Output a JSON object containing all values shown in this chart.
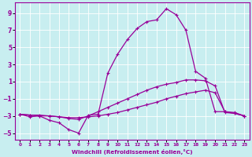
{
  "xlabel": "Windchill (Refroidissement éolien,°C)",
  "xlim": [
    -0.5,
    23.5
  ],
  "ylim": [
    -5.8,
    10.2
  ],
  "yticks": [
    -5,
    -3,
    -1,
    1,
    3,
    5,
    7,
    9
  ],
  "xticks": [
    0,
    1,
    2,
    3,
    4,
    5,
    6,
    7,
    8,
    9,
    10,
    11,
    12,
    13,
    14,
    15,
    16,
    17,
    18,
    19,
    20,
    21,
    22,
    23
  ],
  "bg_color": "#c8eef0",
  "line_color": "#990099",
  "line1_x": [
    0,
    1,
    2,
    3,
    4,
    5,
    6,
    7,
    8,
    9,
    10,
    11,
    12,
    13,
    14,
    15,
    16,
    17,
    18,
    19,
    20,
    21,
    22,
    23
  ],
  "line1_y": [
    -2.8,
    -3.1,
    -3.0,
    -3.5,
    -3.8,
    -4.6,
    -5.0,
    -2.9,
    -2.8,
    2.0,
    4.2,
    5.9,
    7.2,
    8.0,
    8.2,
    9.5,
    8.8,
    7.0,
    2.2,
    1.4,
    -2.5,
    -2.5,
    -2.7,
    -3.0
  ],
  "line2_x": [
    0,
    1,
    2,
    3,
    4,
    5,
    6,
    7,
    8,
    9,
    10,
    11,
    12,
    13,
    14,
    15,
    16,
    17,
    18,
    19,
    20,
    21,
    22,
    23
  ],
  "line2_y": [
    -2.8,
    -2.9,
    -2.9,
    -3.0,
    -3.1,
    -3.3,
    -3.4,
    -3.0,
    -2.5,
    -2.0,
    -1.5,
    -1.0,
    -0.5,
    0.0,
    0.4,
    0.7,
    0.9,
    1.2,
    1.2,
    1.1,
    0.5,
    -2.6,
    -2.7,
    -3.0
  ],
  "line3_x": [
    0,
    1,
    2,
    3,
    4,
    5,
    6,
    7,
    8,
    9,
    10,
    11,
    12,
    13,
    14,
    15,
    16,
    17,
    18,
    19,
    20,
    21,
    22,
    23
  ],
  "line3_y": [
    -2.8,
    -2.9,
    -3.0,
    -3.0,
    -3.1,
    -3.2,
    -3.2,
    -3.1,
    -3.0,
    -2.8,
    -2.6,
    -2.3,
    -2.0,
    -1.7,
    -1.4,
    -1.0,
    -0.7,
    -0.4,
    -0.2,
    0.0,
    -0.3,
    -2.5,
    -2.6,
    -3.0
  ]
}
